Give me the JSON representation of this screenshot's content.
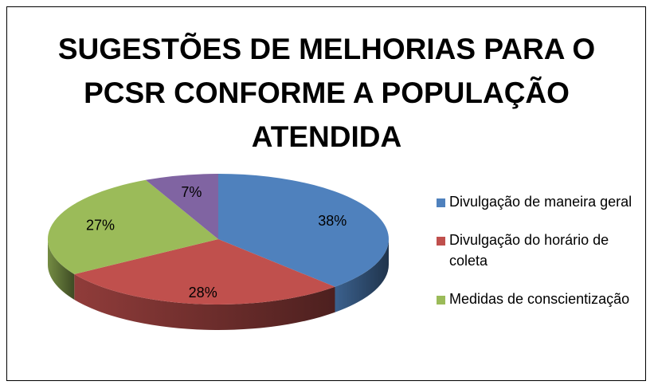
{
  "chart_data": {
    "type": "pie",
    "title": "SUGESTÕES DE MELHORIAS PARA O PCSR CONFORME A POPULAÇÃO ATENDIDA",
    "categories": [
      "Divulgação de maneira geral",
      "Divulgação do horário de coleta",
      "Medidas de conscientização",
      null
    ],
    "values": [
      38,
      28,
      27,
      7
    ],
    "value_labels": [
      "38%",
      "28%",
      "27%",
      "7%"
    ],
    "colors": [
      "#4f81bd",
      "#c0504d",
      "#9bbb59",
      "#8064a2"
    ],
    "legend": "right"
  }
}
